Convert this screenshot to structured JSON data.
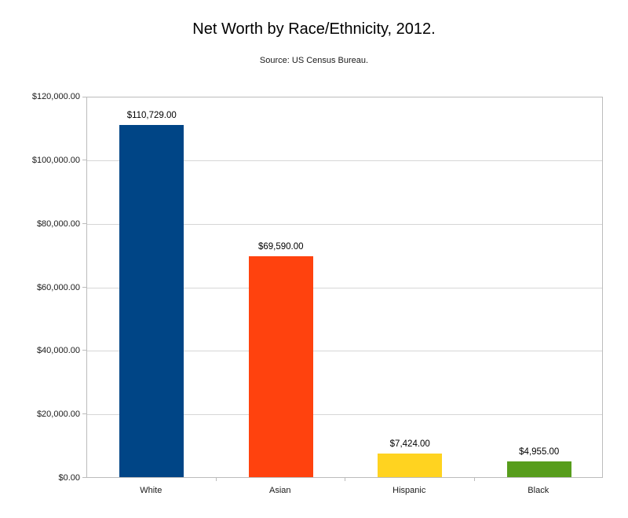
{
  "chart_data": {
    "type": "bar",
    "title": "Net Worth by Race/Ethnicity, 2012.",
    "subtitle": "Source: US Census Bureau.",
    "categories": [
      "White",
      "Asian",
      "Hispanic",
      "Black"
    ],
    "values": [
      110729,
      69590,
      7424,
      4955
    ],
    "data_labels": [
      "$110,729.00",
      "$69,590.00",
      "$7,424.00",
      "$4,955.00"
    ],
    "bar_colors": [
      "#004586",
      "#ff420e",
      "#ffd320",
      "#579d1c"
    ],
    "xlabel": "",
    "ylabel": "",
    "ylim": [
      0,
      120000
    ],
    "ytick_interval": 20000,
    "ytick_labels": [
      "$0.00",
      "$20,000.00",
      "$40,000.00",
      "$60,000.00",
      "$80,000.00",
      "$100,000.00",
      "$120,000.00"
    ],
    "grid": true,
    "legend_position": "none",
    "colors": {
      "background": "#ffffff",
      "gridline": "#d6d6d6",
      "axis_border": "#bcbcbc",
      "text": "#000000"
    }
  }
}
